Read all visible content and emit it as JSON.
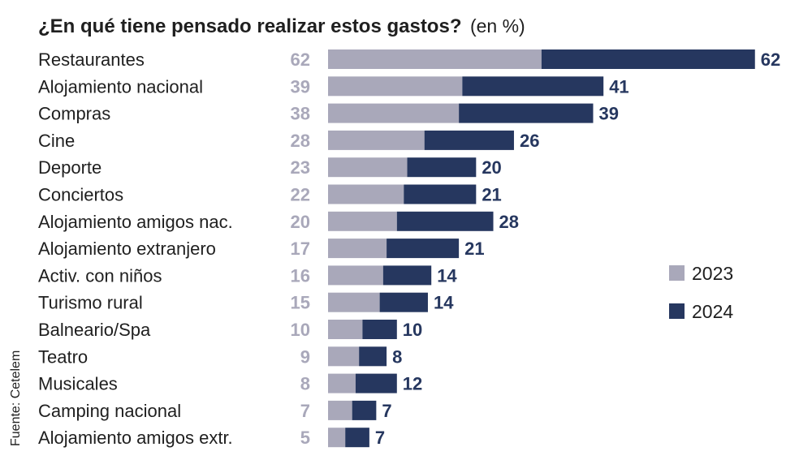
{
  "colors": {
    "y2023": "#a9a8ba",
    "y2024": "#26375f"
  },
  "chart_data": {
    "type": "bar",
    "orientation": "horizontal",
    "stacked": true,
    "title": "¿En qué tiene pensado realizar estos gastos?",
    "title_unit": "(en %)",
    "source": "Fuente: Cetelem",
    "legend_position": "right",
    "categories": [
      "Restaurantes",
      "Alojamiento nacional",
      "Compras",
      "Cine",
      "Deporte",
      "Conciertos",
      "Alojamiento amigos nac.",
      "Alojamiento extranjero",
      "Activ. con niños",
      "Turismo rural",
      "Balneario/Spa",
      "Teatro",
      "Musicales",
      "Camping nacional",
      "Alojamiento amigos extr."
    ],
    "series": [
      {
        "name": "2023",
        "values": [
          62,
          39,
          38,
          28,
          23,
          22,
          20,
          17,
          16,
          15,
          10,
          9,
          8,
          7,
          5
        ]
      },
      {
        "name": "2024",
        "values": [
          62,
          41,
          39,
          26,
          20,
          21,
          28,
          21,
          14,
          14,
          10,
          8,
          12,
          7,
          7
        ]
      }
    ]
  }
}
